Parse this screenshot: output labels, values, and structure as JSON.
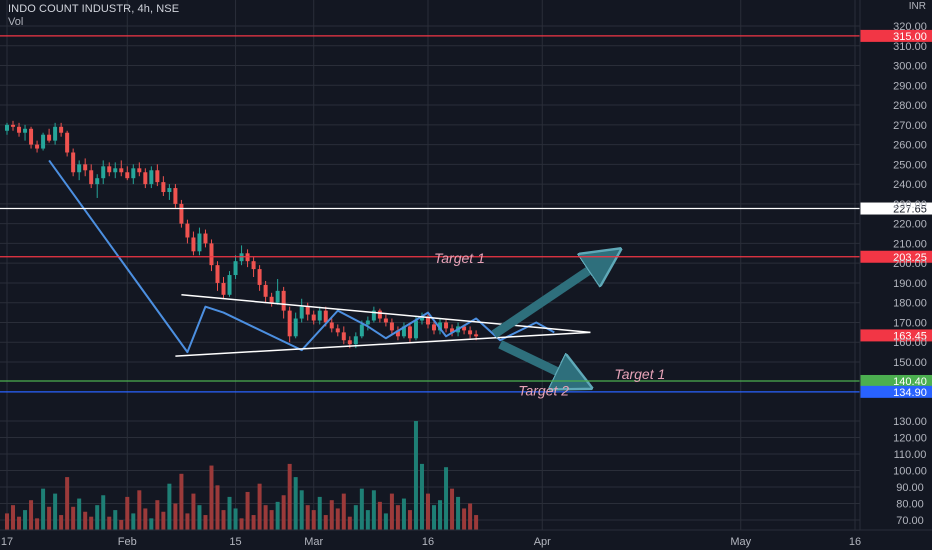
{
  "header": {
    "symbol": "INDO COUNT INDUSTR, 4h, NSE",
    "indicator": "Vol",
    "currency": "INR"
  },
  "colors": {
    "background": "#131722",
    "grid": "#2a2e39",
    "up": "#26a69a",
    "down": "#ef5350",
    "vol_up": "#1e7f75",
    "vol_down": "#9b3a3a",
    "line_red": "#f23645",
    "line_white": "#ffffff",
    "line_green": "#4caf50",
    "line_blue": "#2962ff",
    "drawing_blue": "#4c8fe0",
    "arrow": "#2e6f7c",
    "target_text": "#e7a3b8",
    "axis_text": "#b2b5be"
  },
  "chart_data": {
    "type": "candlestick",
    "price_axis": {
      "ticks": [
        320,
        310,
        300,
        290,
        280,
        270,
        260,
        250,
        240,
        230,
        220,
        210,
        200,
        190,
        180,
        170,
        160,
        150
      ],
      "tick_labels": [
        "320.00",
        "310.00",
        "300.00",
        "290.00",
        "280.00",
        "270.00",
        "260.00",
        "250.00",
        "240.00",
        "230.00",
        "220.00",
        "210.00",
        "200.00",
        "190.00",
        "180.00",
        "170.00",
        "160.00",
        "150.00"
      ]
    },
    "volume_axis": {
      "ticks": [
        130,
        120,
        110,
        100,
        90,
        80,
        70
      ],
      "tick_labels": [
        "130.00",
        "120.00",
        "110.00",
        "100.00",
        "90.00",
        "80.00",
        "70.00"
      ]
    },
    "x_axis": {
      "labels": [
        "17",
        "Feb",
        "15",
        "Mar",
        "16",
        "Apr",
        "May",
        "16"
      ],
      "label_times": [
        0,
        20,
        38,
        51,
        70,
        89,
        122,
        141
      ]
    },
    "horizontal_levels": [
      {
        "value": 315.0,
        "label": "315.00",
        "color": "#f23645"
      },
      {
        "value": 227.65,
        "label": "227.65",
        "color": "#ffffff"
      },
      {
        "value": 203.25,
        "label": "203.25",
        "color": "#f23645"
      },
      {
        "value": 140.4,
        "label": "140.40",
        "color": "#4caf50"
      },
      {
        "value": 134.9,
        "label": "134.90",
        "color": "#2962ff"
      }
    ],
    "current_price": {
      "value": 163.45,
      "label": "163.45"
    },
    "annotations": [
      {
        "text": "Target 1",
        "anchor_time": 71,
        "anchor_price": 200
      },
      {
        "text": "Target 1",
        "anchor_time": 101,
        "anchor_price": 141.5
      },
      {
        "text": "Target 2",
        "anchor_time": 85,
        "anchor_price": 133
      }
    ],
    "candles": [
      [
        267,
        271,
        265,
        270
      ],
      [
        270,
        272,
        267,
        269
      ],
      [
        269,
        271,
        264,
        266
      ],
      [
        266,
        270,
        262,
        268
      ],
      [
        268,
        269,
        258,
        260
      ],
      [
        260,
        262,
        256,
        258
      ],
      [
        258,
        266,
        257,
        265
      ],
      [
        265,
        268,
        261,
        262
      ],
      [
        262,
        271,
        260,
        269
      ],
      [
        269,
        271,
        264,
        266
      ],
      [
        266,
        267,
        254,
        256
      ],
      [
        256,
        258,
        244,
        246
      ],
      [
        246,
        252,
        242,
        250
      ],
      [
        250,
        253,
        244,
        247
      ],
      [
        247,
        250,
        238,
        240
      ],
      [
        240,
        245,
        233,
        243
      ],
      [
        243,
        252,
        240,
        249
      ],
      [
        249,
        251,
        244,
        246
      ],
      [
        246,
        251,
        243,
        248
      ],
      [
        248,
        252,
        244,
        246
      ],
      [
        246,
        249,
        242,
        243
      ],
      [
        243,
        250,
        240,
        248
      ],
      [
        248,
        251,
        244,
        246
      ],
      [
        246,
        248,
        238,
        240
      ],
      [
        240,
        249,
        238,
        247
      ],
      [
        247,
        250,
        239,
        241
      ],
      [
        241,
        244,
        234,
        236
      ],
      [
        236,
        240,
        232,
        238
      ],
      [
        238,
        240,
        228,
        230
      ],
      [
        230,
        232,
        218,
        220
      ],
      [
        220,
        222,
        210,
        213
      ],
      [
        213,
        216,
        204,
        206
      ],
      [
        206,
        218,
        204,
        215
      ],
      [
        215,
        217,
        208,
        210
      ],
      [
        210,
        212,
        196,
        199
      ],
      [
        199,
        201,
        186,
        190
      ],
      [
        190,
        193,
        182,
        184
      ],
      [
        184,
        196,
        183,
        194
      ],
      [
        194,
        204,
        192,
        201
      ],
      [
        201,
        209,
        199,
        205
      ],
      [
        205,
        207,
        198,
        201
      ],
      [
        201,
        203,
        193,
        197
      ],
      [
        197,
        199,
        186,
        189
      ],
      [
        189,
        191,
        180,
        183
      ],
      [
        183,
        185,
        178,
        180
      ],
      [
        180,
        192,
        179,
        186
      ],
      [
        186,
        188,
        172,
        176
      ],
      [
        176,
        178,
        160,
        163
      ],
      [
        163,
        175,
        162,
        172
      ],
      [
        172,
        182,
        170,
        178
      ],
      [
        178,
        180,
        171,
        174
      ],
      [
        174,
        176,
        169,
        171
      ],
      [
        171,
        178,
        169,
        176
      ],
      [
        176,
        178,
        168,
        170
      ],
      [
        170,
        172,
        165,
        167
      ],
      [
        167,
        169,
        163,
        165
      ],
      [
        165,
        168,
        159,
        161
      ],
      [
        161,
        163,
        157,
        159
      ],
      [
        159,
        165,
        157,
        163
      ],
      [
        163,
        171,
        162,
        169
      ],
      [
        169,
        173,
        166,
        171
      ],
      [
        171,
        178,
        170,
        176
      ],
      [
        176,
        177,
        170,
        172
      ],
      [
        172,
        174,
        168,
        170
      ],
      [
        170,
        172,
        164,
        166
      ],
      [
        166,
        168,
        161,
        163
      ],
      [
        163,
        170,
        162,
        168
      ],
      [
        168,
        170,
        160,
        162
      ],
      [
        162,
        173,
        161,
        171
      ],
      [
        171,
        175,
        169,
        173
      ],
      [
        173,
        174,
        167,
        169
      ],
      [
        169,
        171,
        164,
        166
      ],
      [
        166,
        172,
        164,
        170
      ],
      [
        170,
        172,
        165,
        167
      ],
      [
        167,
        169,
        163,
        165
      ],
      [
        165,
        170,
        163,
        168
      ],
      [
        168,
        169,
        164,
        166
      ],
      [
        166,
        168,
        162,
        164
      ],
      [
        164,
        166,
        161,
        163
      ]
    ],
    "volumes": [
      [
        74,
        0
      ],
      [
        79,
        0
      ],
      [
        72,
        0
      ],
      [
        76,
        1
      ],
      [
        82,
        0
      ],
      [
        71,
        0
      ],
      [
        89,
        1
      ],
      [
        78,
        0
      ],
      [
        86,
        1
      ],
      [
        73,
        0
      ],
      [
        96,
        0
      ],
      [
        78,
        0
      ],
      [
        83,
        1
      ],
      [
        75,
        0
      ],
      [
        72,
        0
      ],
      [
        79,
        1
      ],
      [
        85,
        1
      ],
      [
        72,
        0
      ],
      [
        76,
        1
      ],
      [
        70,
        0
      ],
      [
        84,
        0
      ],
      [
        74,
        1
      ],
      [
        88,
        0
      ],
      [
        77,
        0
      ],
      [
        71,
        1
      ],
      [
        82,
        0
      ],
      [
        75,
        0
      ],
      [
        92,
        1
      ],
      [
        80,
        0
      ],
      [
        98,
        0
      ],
      [
        74,
        0
      ],
      [
        86,
        0
      ],
      [
        79,
        1
      ],
      [
        73,
        0
      ],
      [
        103,
        0
      ],
      [
        91,
        0
      ],
      [
        76,
        0
      ],
      [
        84,
        1
      ],
      [
        77,
        1
      ],
      [
        71,
        0
      ],
      [
        87,
        0
      ],
      [
        73,
        0
      ],
      [
        92,
        0
      ],
      [
        79,
        0
      ],
      [
        76,
        0
      ],
      [
        81,
        1
      ],
      [
        85,
        0
      ],
      [
        104,
        0
      ],
      [
        96,
        1
      ],
      [
        88,
        1
      ],
      [
        79,
        0
      ],
      [
        76,
        0
      ],
      [
        84,
        1
      ],
      [
        73,
        0
      ],
      [
        82,
        0
      ],
      [
        77,
        0
      ],
      [
        86,
        0
      ],
      [
        72,
        0
      ],
      [
        79,
        1
      ],
      [
        89,
        1
      ],
      [
        76,
        1
      ],
      [
        88,
        1
      ],
      [
        81,
        0
      ],
      [
        74,
        1
      ],
      [
        86,
        0
      ],
      [
        79,
        0
      ],
      [
        83,
        1
      ],
      [
        76,
        0
      ],
      [
        130,
        1
      ],
      [
        104,
        1
      ],
      [
        86,
        0
      ],
      [
        79,
        1
      ],
      [
        82,
        1
      ],
      [
        102,
        1
      ],
      [
        89,
        0
      ],
      [
        84,
        1
      ],
      [
        77,
        0
      ],
      [
        80,
        0
      ],
      [
        73,
        0
      ]
    ],
    "blue_zigzag": [
      [
        7,
        252
      ],
      [
        30,
        155
      ],
      [
        33,
        178
      ],
      [
        36,
        175
      ],
      [
        49,
        156
      ],
      [
        55,
        176
      ],
      [
        60,
        168
      ],
      [
        63,
        162
      ],
      [
        70,
        175
      ],
      [
        73,
        163
      ],
      [
        78,
        172
      ],
      [
        82,
        161
      ],
      [
        88,
        170
      ],
      [
        91,
        165
      ]
    ],
    "triangle": {
      "upper": [
        [
          29,
          184
        ],
        [
          97,
          165
        ]
      ],
      "lower": [
        [
          28,
          153
        ],
        [
          97,
          165
        ]
      ]
    },
    "arrow_up": {
      "from": [
        81,
        164
      ],
      "to": [
        100,
        203
      ]
    },
    "arrow_down": {
      "from": [
        82,
        159
      ],
      "to": [
        95,
        140
      ]
    }
  }
}
